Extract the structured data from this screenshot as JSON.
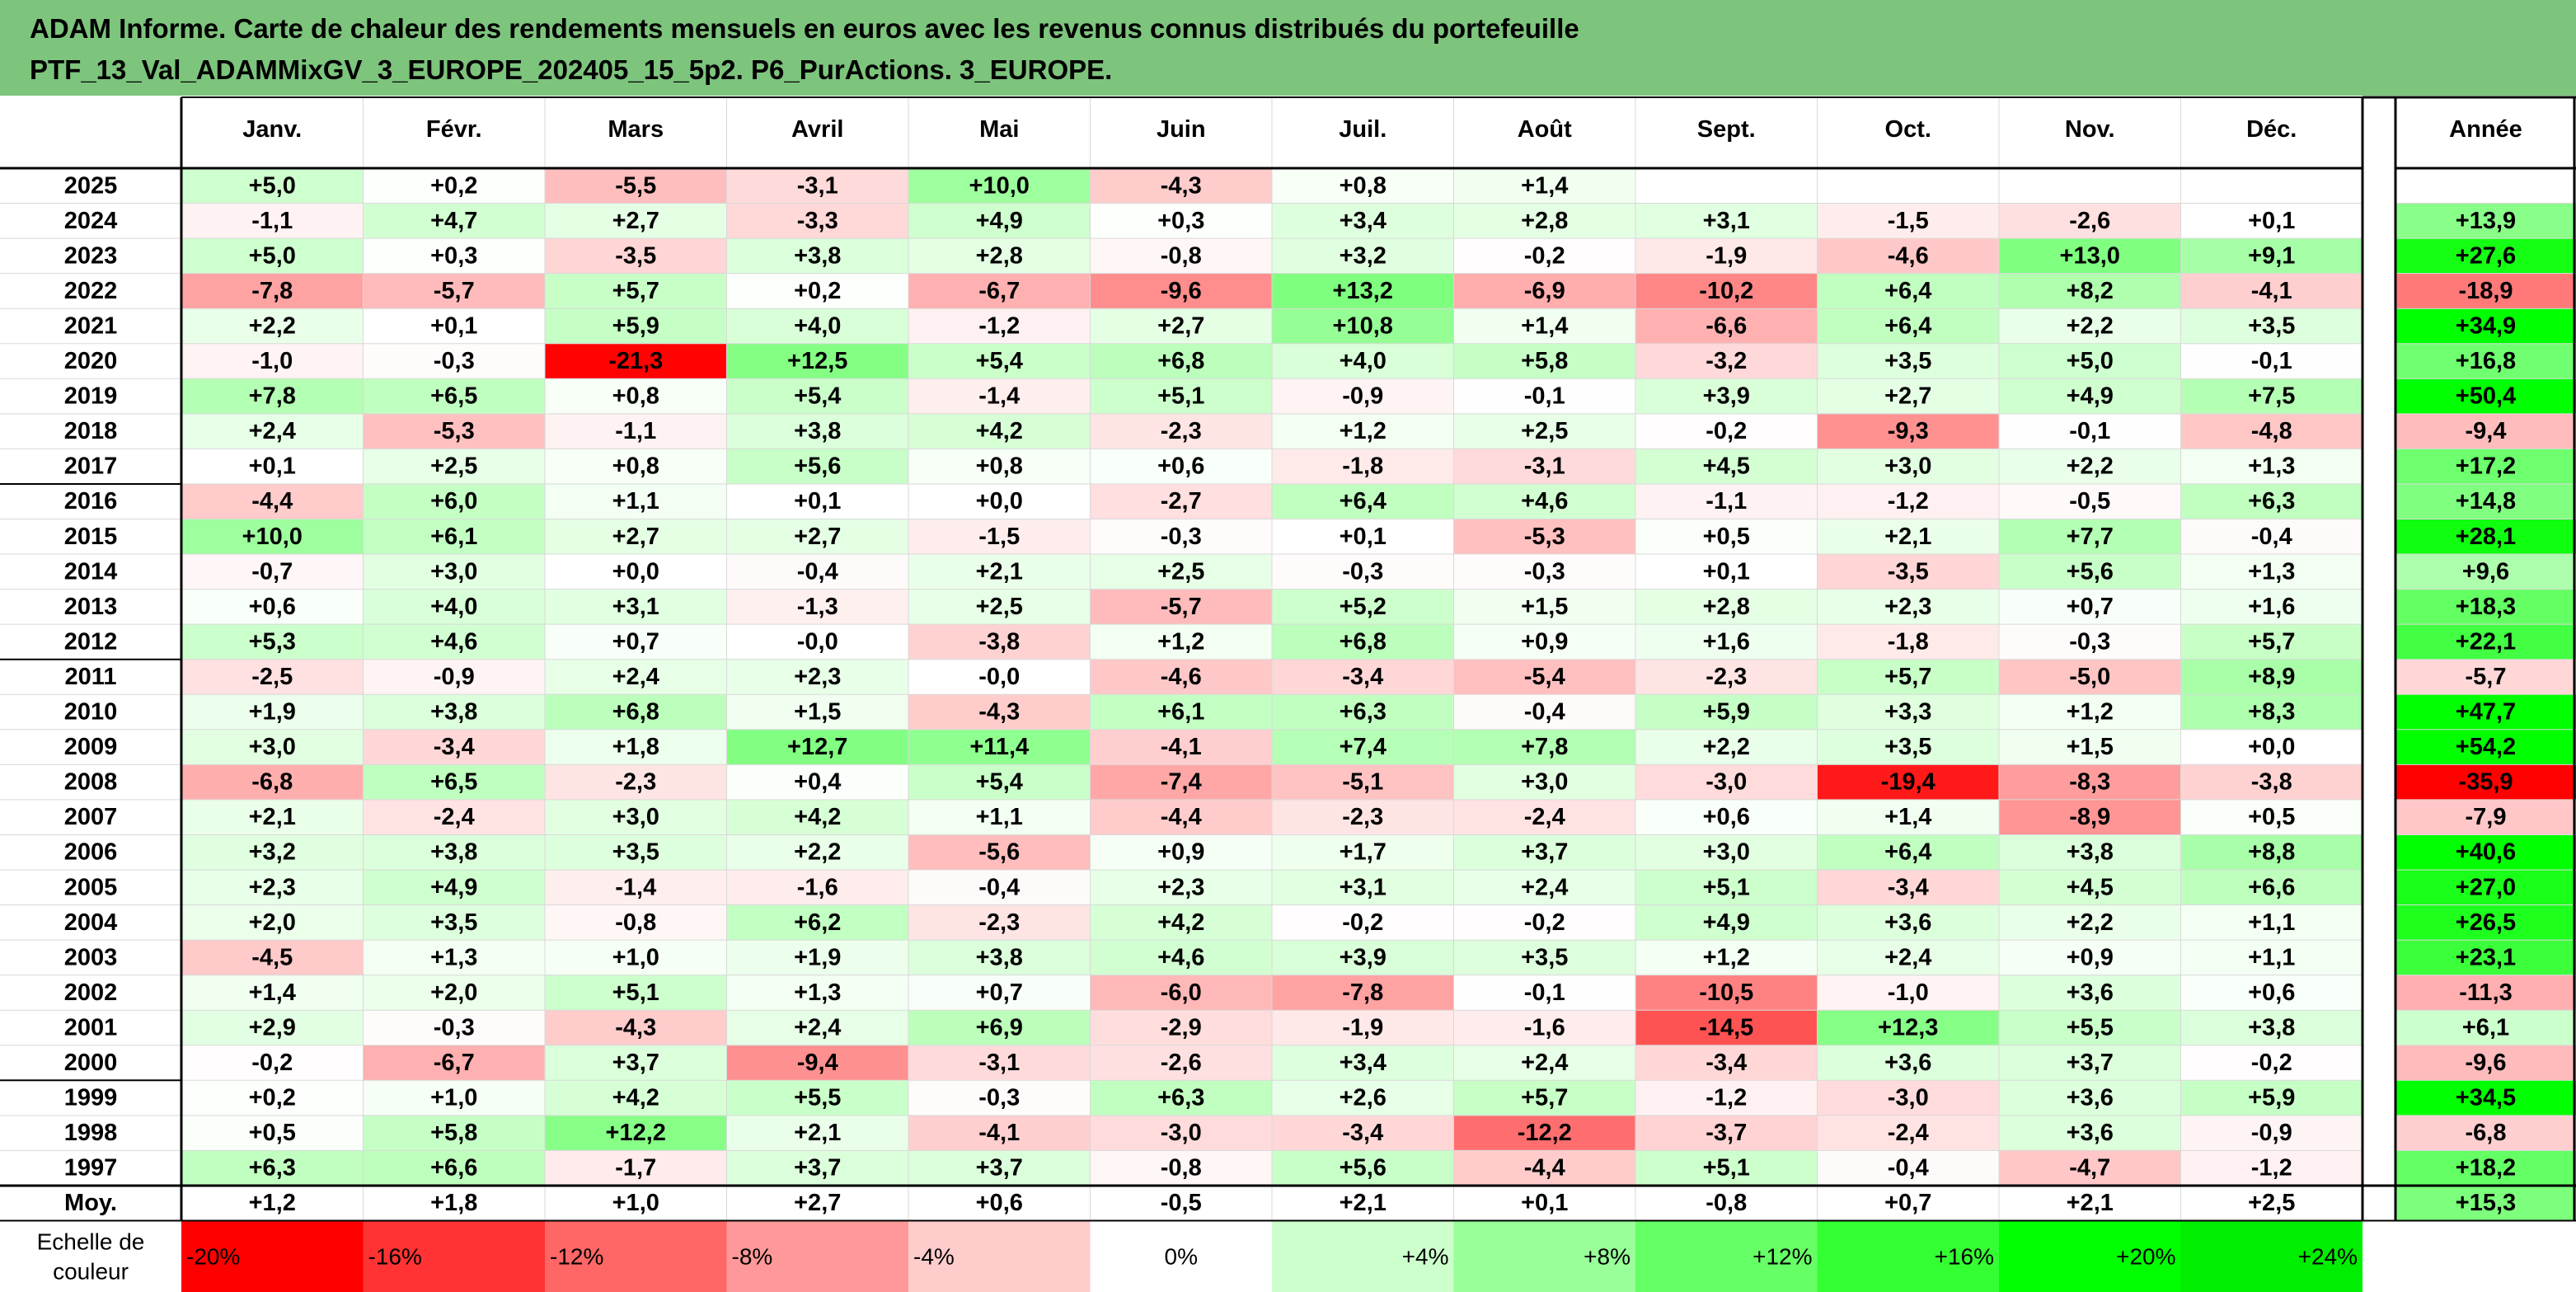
{
  "title": {
    "line1": "ADAM Informe. Carte de chaleur des rendements mensuels en euros avec les revenus connus distribués du portefeuille",
    "line2": "PTF_13_Val_ADAMMixGV_3_EUROPE_202405_15_5p2. P6_PurActions. 3_EUROPE."
  },
  "chart_data": {
    "type": "heatmap",
    "months": [
      "Janv.",
      "Févr.",
      "Mars",
      "Avril",
      "Mai",
      "Juin",
      "Juil.",
      "Août",
      "Sept.",
      "Oct.",
      "Nov.",
      "Déc."
    ],
    "year_header": "Année",
    "rows": [
      {
        "year": "2025",
        "values": [
          "+5,0",
          "+0,2",
          "-5,5",
          "-3,1",
          "+10,0",
          "-4,3",
          "+0,8",
          "+1,4",
          "",
          "",
          "",
          ""
        ],
        "total": ""
      },
      {
        "year": "2024",
        "values": [
          "-1,1",
          "+4,7",
          "+2,7",
          "-3,3",
          "+4,9",
          "+0,3",
          "+3,4",
          "+2,8",
          "+3,1",
          "-1,5",
          "-2,6",
          "+0,1"
        ],
        "total": "+13,9"
      },
      {
        "year": "2023",
        "values": [
          "+5,0",
          "+0,3",
          "-3,5",
          "+3,8",
          "+2,8",
          "-0,8",
          "+3,2",
          "-0,2",
          "-1,9",
          "-4,6",
          "+13,0",
          "+9,1"
        ],
        "total": "+27,6"
      },
      {
        "year": "2022",
        "values": [
          "-7,8",
          "-5,7",
          "+5,7",
          "+0,2",
          "-6,7",
          "-9,6",
          "+13,2",
          "-6,9",
          "-10,2",
          "+6,4",
          "+8,2",
          "-4,1"
        ],
        "total": "-18,9"
      },
      {
        "year": "2021",
        "values": [
          "+2,2",
          "+0,1",
          "+5,9",
          "+4,0",
          "-1,2",
          "+2,7",
          "+10,8",
          "+1,4",
          "-6,6",
          "+6,4",
          "+2,2",
          "+3,5"
        ],
        "total": "+34,9"
      },
      {
        "year": "2020",
        "values": [
          "-1,0",
          "-0,3",
          "-21,3",
          "+12,5",
          "+5,4",
          "+6,8",
          "+4,0",
          "+5,8",
          "-3,2",
          "+3,5",
          "+5,0",
          "-0,1"
        ],
        "total": "+16,8"
      },
      {
        "year": "2019",
        "values": [
          "+7,8",
          "+6,5",
          "+0,8",
          "+5,4",
          "-1,4",
          "+5,1",
          "-0,9",
          "-0,1",
          "+3,9",
          "+2,7",
          "+4,9",
          "+7,5"
        ],
        "total": "+50,4"
      },
      {
        "year": "2018",
        "values": [
          "+2,4",
          "-5,3",
          "-1,1",
          "+3,8",
          "+4,2",
          "-2,3",
          "+1,2",
          "+2,5",
          "-0,2",
          "-9,3",
          "-0,1",
          "-4,8"
        ],
        "total": "-9,4"
      },
      {
        "year": "2017",
        "values": [
          "+0,1",
          "+2,5",
          "+0,8",
          "+5,6",
          "+0,8",
          "+0,6",
          "-1,8",
          "-3,1",
          "+4,5",
          "+3,0",
          "+2,2",
          "+1,3"
        ],
        "total": "+17,2"
      },
      {
        "year": "2016",
        "values": [
          "-4,4",
          "+6,0",
          "+1,1",
          "+0,1",
          "+0,0",
          "-2,7",
          "+6,4",
          "+4,6",
          "-1,1",
          "-1,2",
          "-0,5",
          "+6,3"
        ],
        "total": "+14,8"
      },
      {
        "year": "2015",
        "values": [
          "+10,0",
          "+6,1",
          "+2,7",
          "+2,7",
          "-1,5",
          "-0,3",
          "+0,1",
          "-5,3",
          "+0,5",
          "+2,1",
          "+7,7",
          "-0,4"
        ],
        "total": "+28,1"
      },
      {
        "year": "2014",
        "values": [
          "-0,7",
          "+3,0",
          "+0,0",
          "-0,4",
          "+2,1",
          "+2,5",
          "-0,3",
          "-0,3",
          "+0,1",
          "-3,5",
          "+5,6",
          "+1,3"
        ],
        "total": "+9,6"
      },
      {
        "year": "2013",
        "values": [
          "+0,6",
          "+4,0",
          "+3,1",
          "-1,3",
          "+2,5",
          "-5,7",
          "+5,2",
          "+1,5",
          "+2,8",
          "+2,3",
          "+0,7",
          "+1,6"
        ],
        "total": "+18,3"
      },
      {
        "year": "2012",
        "values": [
          "+5,3",
          "+4,6",
          "+0,7",
          "-0,0",
          "-3,8",
          "+1,2",
          "+6,8",
          "+0,9",
          "+1,6",
          "-1,8",
          "-0,3",
          "+5,7"
        ],
        "total": "+22,1"
      },
      {
        "year": "2011",
        "values": [
          "-2,5",
          "-0,9",
          "+2,4",
          "+2,3",
          "-0,0",
          "-4,6",
          "-3,4",
          "-5,4",
          "-2,3",
          "+5,7",
          "-5,0",
          "+8,9"
        ],
        "total": "-5,7"
      },
      {
        "year": "2010",
        "values": [
          "+1,9",
          "+3,8",
          "+6,8",
          "+1,5",
          "-4,3",
          "+6,1",
          "+6,3",
          "-0,4",
          "+5,9",
          "+3,3",
          "+1,2",
          "+8,3"
        ],
        "total": "+47,7"
      },
      {
        "year": "2009",
        "values": [
          "+3,0",
          "-3,4",
          "+1,8",
          "+12,7",
          "+11,4",
          "-4,1",
          "+7,4",
          "+7,8",
          "+2,2",
          "+3,5",
          "+1,5",
          "+0,0"
        ],
        "total": "+54,2"
      },
      {
        "year": "2008",
        "values": [
          "-6,8",
          "+6,5",
          "-2,3",
          "+0,4",
          "+5,4",
          "-7,4",
          "-5,1",
          "+3,0",
          "-3,0",
          "-19,4",
          "-8,3",
          "-3,8"
        ],
        "total": "-35,9"
      },
      {
        "year": "2007",
        "values": [
          "+2,1",
          "-2,4",
          "+3,0",
          "+4,2",
          "+1,1",
          "-4,4",
          "-2,3",
          "-2,4",
          "+0,6",
          "+1,4",
          "-8,9",
          "+0,5"
        ],
        "total": "-7,9"
      },
      {
        "year": "2006",
        "values": [
          "+3,2",
          "+3,8",
          "+3,5",
          "+2,2",
          "-5,6",
          "+0,9",
          "+1,7",
          "+3,7",
          "+3,0",
          "+6,4",
          "+3,8",
          "+8,8"
        ],
        "total": "+40,6"
      },
      {
        "year": "2005",
        "values": [
          "+2,3",
          "+4,9",
          "-1,4",
          "-1,6",
          "-0,4",
          "+2,3",
          "+3,1",
          "+2,4",
          "+5,1",
          "-3,4",
          "+4,5",
          "+6,6"
        ],
        "total": "+27,0"
      },
      {
        "year": "2004",
        "values": [
          "+2,0",
          "+3,5",
          "-0,8",
          "+6,2",
          "-2,3",
          "+4,2",
          "-0,2",
          "-0,2",
          "+4,9",
          "+3,6",
          "+2,2",
          "+1,1"
        ],
        "total": "+26,5"
      },
      {
        "year": "2003",
        "values": [
          "-4,5",
          "+1,3",
          "+1,0",
          "+1,9",
          "+3,8",
          "+4,6",
          "+3,9",
          "+3,5",
          "+1,2",
          "+2,4",
          "+0,9",
          "+1,1"
        ],
        "total": "+23,1"
      },
      {
        "year": "2002",
        "values": [
          "+1,4",
          "+2,0",
          "+5,1",
          "+1,3",
          "+0,7",
          "-6,0",
          "-7,8",
          "-0,1",
          "-10,5",
          "-1,0",
          "+3,6",
          "+0,6"
        ],
        "total": "-11,3"
      },
      {
        "year": "2001",
        "values": [
          "+2,9",
          "-0,3",
          "-4,3",
          "+2,4",
          "+6,9",
          "-2,9",
          "-1,9",
          "-1,6",
          "-14,5",
          "+12,3",
          "+5,5",
          "+3,8"
        ],
        "total": "+6,1"
      },
      {
        "year": "2000",
        "values": [
          "-0,2",
          "-6,7",
          "+3,7",
          "-9,4",
          "-3,1",
          "-2,6",
          "+3,4",
          "+2,4",
          "-3,4",
          "+3,6",
          "+3,7",
          "-0,2"
        ],
        "total": "-9,6"
      },
      {
        "year": "1999",
        "values": [
          "+0,2",
          "+1,0",
          "+4,2",
          "+5,5",
          "-0,3",
          "+6,3",
          "+2,6",
          "+5,7",
          "-1,2",
          "-3,0",
          "+3,6",
          "+5,9"
        ],
        "total": "+34,5"
      },
      {
        "year": "1998",
        "values": [
          "+0,5",
          "+5,8",
          "+12,2",
          "+2,1",
          "-4,1",
          "-3,0",
          "-3,4",
          "-12,2",
          "-3,7",
          "-2,4",
          "+3,6",
          "-0,9"
        ],
        "total": "-6,8"
      },
      {
        "year": "1997",
        "values": [
          "+6,3",
          "+6,6",
          "-1,7",
          "+3,7",
          "+3,7",
          "-0,8",
          "+5,6",
          "-4,4",
          "+5,1",
          "-0,4",
          "-4,7",
          "-1,2"
        ],
        "total": "+18,2"
      }
    ],
    "average": {
      "label": "Moy.",
      "values": [
        "+1,2",
        "+1,8",
        "+1,0",
        "+2,7",
        "+0,6",
        "-0,5",
        "+2,1",
        "+0,1",
        "-0,8",
        "+0,7",
        "+2,1",
        "+2,5"
      ],
      "total": "+15,3"
    },
    "scale": {
      "label_line1": "Echelle de",
      "label_line2": "couleur",
      "steps": [
        {
          "text": "-20%",
          "value": -20,
          "color": "#ff0000"
        },
        {
          "text": "-16%",
          "value": -16,
          "color": "#ff3333"
        },
        {
          "text": "-12%",
          "value": -12,
          "color": "#ff6666"
        },
        {
          "text": "-8%",
          "value": -8,
          "color": "#ff9999"
        },
        {
          "text": "-4%",
          "value": -4,
          "color": "#ffcccc"
        },
        {
          "text": "0%",
          "value": 0,
          "color": "#ffffff"
        },
        {
          "text": "+4%",
          "value": 4,
          "color": "#ccffcc"
        },
        {
          "text": "+8%",
          "value": 8,
          "color": "#99ff99"
        },
        {
          "text": "+12%",
          "value": 12,
          "color": "#66ff66"
        },
        {
          "text": "+16%",
          "value": 16,
          "color": "#33ff33"
        },
        {
          "text": "+20%",
          "value": 20,
          "color": "#00ff00"
        },
        {
          "text": "+24%",
          "value": 24,
          "color": "#00ee00"
        }
      ]
    }
  }
}
